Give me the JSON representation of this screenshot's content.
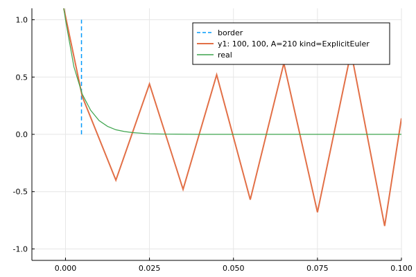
{
  "chart_data": {
    "type": "line",
    "xlim": [
      -0.01,
      0.1
    ],
    "ylim": [
      -1.1,
      1.1
    ],
    "grid": true,
    "legend_position": "top-right",
    "x_ticks": [
      {
        "value": 0.0,
        "label": "0.000"
      },
      {
        "value": 0.025,
        "label": "0.025"
      },
      {
        "value": 0.05,
        "label": "0.050"
      },
      {
        "value": 0.075,
        "label": "0.075"
      },
      {
        "value": 0.1,
        "label": "0.100"
      }
    ],
    "y_ticks": [
      {
        "value": 1.0,
        "label": "1.0"
      },
      {
        "value": 0.5,
        "label": "0.5"
      },
      {
        "value": 0.0,
        "label": "0.0"
      },
      {
        "value": -0.5,
        "label": "-0.5"
      },
      {
        "value": -1.0,
        "label": "-1.0"
      }
    ],
    "series": [
      {
        "name": "border",
        "color": "#009AFA",
        "style": "dashed",
        "x": [
          0.004762,
          0.004762
        ],
        "y": [
          0.0,
          1.0
        ]
      },
      {
        "name": "y1: 100, 100,  A=210  kind=ExplicitEuler",
        "color": "#E26F46",
        "style": "solid",
        "x": [
          -0.0005,
          0.005,
          0.015,
          0.025,
          0.035,
          0.045,
          0.055,
          0.065,
          0.075,
          0.085,
          0.095,
          0.1
        ],
        "y": [
          1.1,
          0.33,
          -0.4,
          0.44,
          -0.48,
          0.52,
          -0.57,
          0.62,
          -0.68,
          0.72,
          -0.8,
          0.14
        ]
      },
      {
        "name": "real",
        "color": "#3DA44D",
        "style": "solid",
        "x": [
          -0.0005,
          0.0,
          0.0025,
          0.005,
          0.0075,
          0.01,
          0.0125,
          0.015,
          0.0175,
          0.02,
          0.025,
          0.03,
          0.04,
          0.05,
          0.06,
          0.07,
          0.08,
          0.09,
          0.1
        ],
        "y": [
          1.1,
          1.0,
          0.59,
          0.35,
          0.21,
          0.12,
          0.07,
          0.04,
          0.025,
          0.015,
          0.005,
          0.002,
          0.0,
          0.0,
          0.0,
          0.0,
          0.0,
          0.0,
          0.0
        ]
      }
    ]
  }
}
